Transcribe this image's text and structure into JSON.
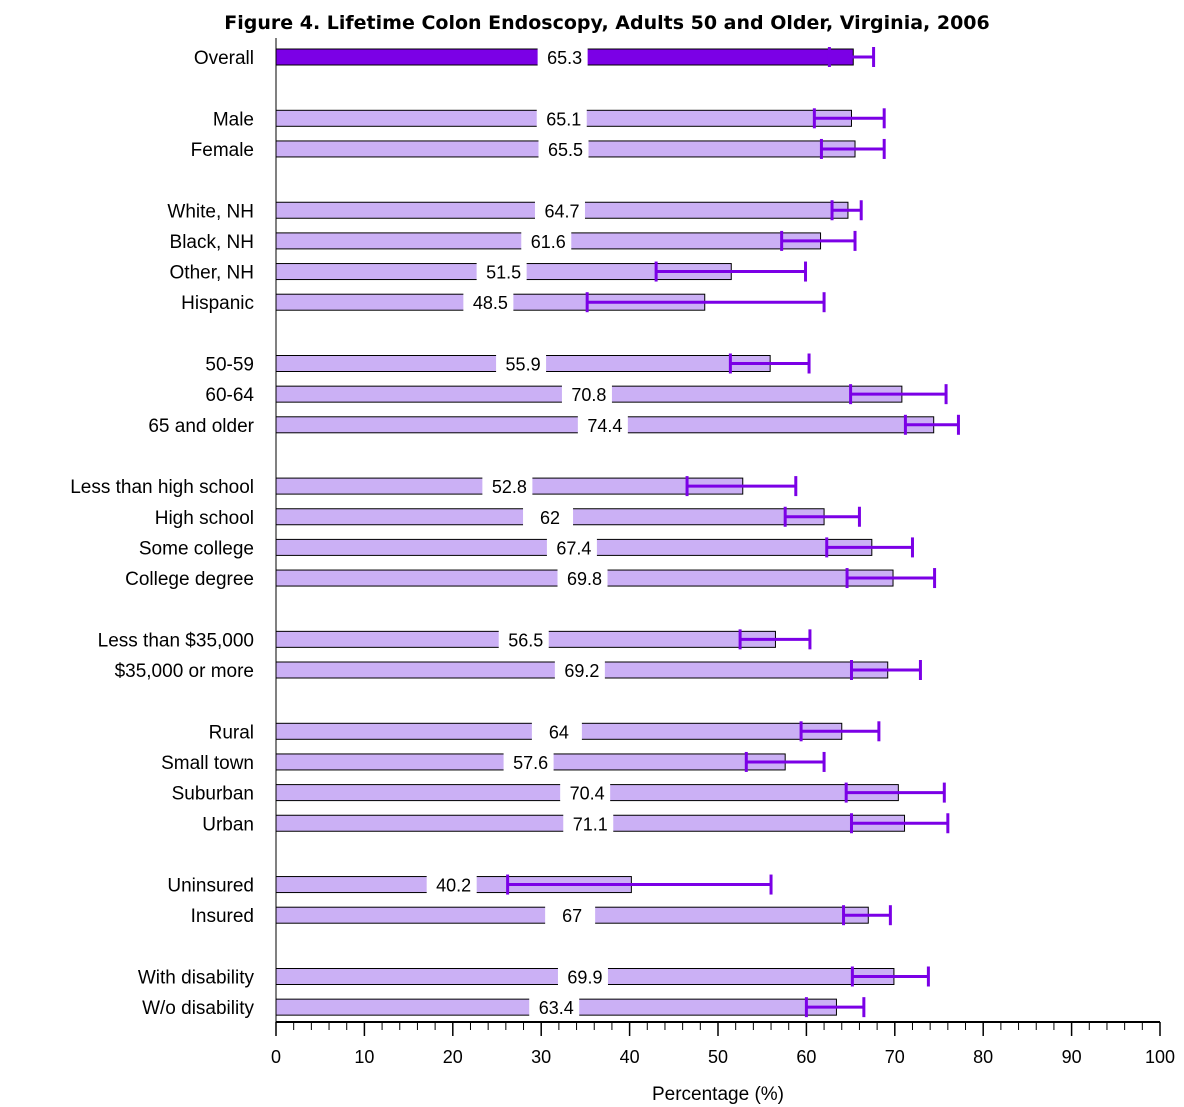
{
  "chart_data": {
    "type": "bar",
    "orientation": "horizontal",
    "title": "Figure 4. Lifetime Colon Endoscopy, Adults 50 and Older, Virginia, 2006",
    "xlabel": "Percentage (%)",
    "ylabel": "",
    "xlim": [
      0,
      100
    ],
    "x_ticks": [
      "0",
      "10",
      "20",
      "30",
      "40",
      "50",
      "60",
      "70",
      "80",
      "90",
      "100"
    ],
    "grid": false,
    "legend": "none",
    "colors": {
      "highlight_bar": "#7b00e6",
      "bar": "#cbb0f5",
      "error_bar": "#7b00e6",
      "bar_outline": "#000000"
    },
    "groups": [
      [
        {
          "label": "Overall",
          "value": 65.3,
          "value_label": "65.3",
          "ci": [
            62.6,
            67.6
          ],
          "highlight": true
        }
      ],
      [
        {
          "label": "Male",
          "value": 65.1,
          "value_label": "65.1",
          "ci": [
            60.9,
            68.8
          ]
        },
        {
          "label": "Female",
          "value": 65.5,
          "value_label": "65.5",
          "ci": [
            61.7,
            68.8
          ]
        }
      ],
      [
        {
          "label": "White, NH",
          "value": 64.7,
          "value_label": "64.7",
          "ci": [
            62.9,
            66.2
          ]
        },
        {
          "label": "Black, NH",
          "value": 61.6,
          "value_label": "61.6",
          "ci": [
            57.2,
            65.5
          ]
        },
        {
          "label": "Other, NH",
          "value": 51.5,
          "value_label": "51.5",
          "ci": [
            43.0,
            59.9
          ]
        },
        {
          "label": "Hispanic",
          "value": 48.5,
          "value_label": "48.5",
          "ci": [
            35.2,
            62.0
          ]
        }
      ],
      [
        {
          "label": "50-59",
          "value": 55.9,
          "value_label": "55.9",
          "ci": [
            51.4,
            60.3
          ]
        },
        {
          "label": "60-64",
          "value": 70.8,
          "value_label": "70.8",
          "ci": [
            65.0,
            75.8
          ]
        },
        {
          "label": "65 and older",
          "value": 74.4,
          "value_label": "74.4",
          "ci": [
            71.2,
            77.2
          ]
        }
      ],
      [
        {
          "label": "Less than high school",
          "value": 52.8,
          "value_label": "52.8",
          "ci": [
            46.5,
            58.8
          ]
        },
        {
          "label": "High school",
          "value": 62,
          "value_label": "62",
          "ci": [
            57.6,
            66.0
          ]
        },
        {
          "label": "Some college",
          "value": 67.4,
          "value_label": "67.4",
          "ci": [
            62.3,
            72.0
          ]
        },
        {
          "label": "College degree",
          "value": 69.8,
          "value_label": "69.8",
          "ci": [
            64.6,
            74.5
          ]
        }
      ],
      [
        {
          "label": "Less than $35,000",
          "value": 56.5,
          "value_label": "56.5",
          "ci": [
            52.5,
            60.4
          ]
        },
        {
          "label": "$35,000 or more",
          "value": 69.2,
          "value_label": "69.2",
          "ci": [
            65.1,
            72.9
          ]
        }
      ],
      [
        {
          "label": "Rural",
          "value": 64,
          "value_label": "64",
          "ci": [
            59.4,
            68.2
          ]
        },
        {
          "label": "Small town",
          "value": 57.6,
          "value_label": "57.6",
          "ci": [
            53.2,
            62.0
          ]
        },
        {
          "label": "Suburban",
          "value": 70.4,
          "value_label": "70.4",
          "ci": [
            64.5,
            75.6
          ]
        },
        {
          "label": "Urban",
          "value": 71.1,
          "value_label": "71.1",
          "ci": [
            65.1,
            76.0
          ]
        }
      ],
      [
        {
          "label": "Uninsured",
          "value": 40.2,
          "value_label": "40.2",
          "ci": [
            26.2,
            56.0
          ]
        },
        {
          "label": "Insured",
          "value": 67,
          "value_label": "67",
          "ci": [
            64.2,
            69.5
          ]
        }
      ],
      [
        {
          "label": "With disability",
          "value": 69.9,
          "value_label": "69.9",
          "ci": [
            65.2,
            73.8
          ]
        },
        {
          "label": "W/o disability",
          "value": 63.4,
          "value_label": "63.4",
          "ci": [
            60.0,
            66.5
          ]
        }
      ]
    ]
  }
}
